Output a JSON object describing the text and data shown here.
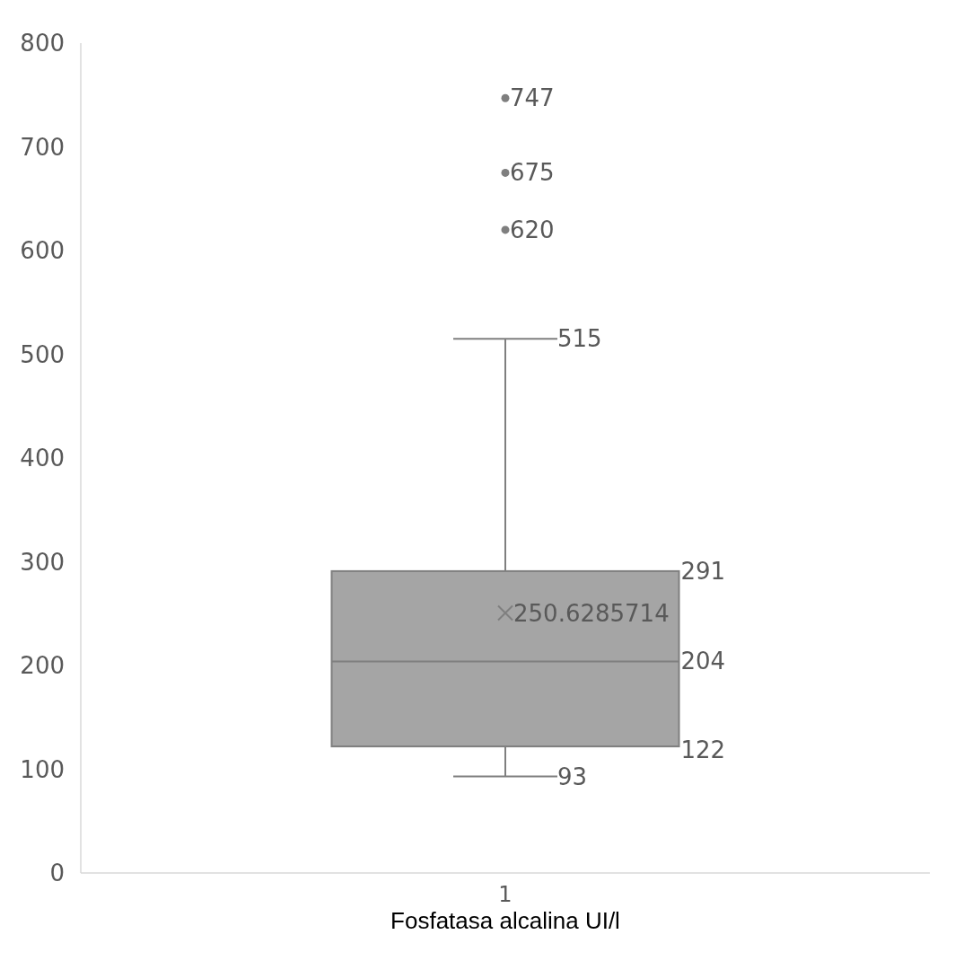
{
  "chart_data": {
    "type": "box",
    "categories": [
      "1"
    ],
    "xlabel": "Fosfatasa alcalina UI/l",
    "ylim": [
      0,
      800
    ],
    "yticks": [
      0,
      100,
      200,
      300,
      400,
      500,
      600,
      700,
      800
    ],
    "grid": false,
    "data_labels": true,
    "series": [
      {
        "color": "#a5a5a5",
        "boxes": [
          {
            "low": 93,
            "q1": 122,
            "median": 204,
            "q3": 291,
            "high": 515
          }
        ]
      },
      {
        "type": "scatter",
        "color": "#7f7f7f",
        "marker": "circle",
        "x": [
          "1",
          "1",
          "1"
        ],
        "values": [
          747,
          675,
          620
        ]
      },
      {
        "type": "scatter",
        "color": "#7f7f7f",
        "marker": "cross",
        "x": [
          "1"
        ],
        "values": [
          250.6285714
        ]
      }
    ],
    "annotations": [
      {
        "text": "515",
        "x": "1",
        "y": 515
      },
      {
        "text": "93",
        "x": "1",
        "y": 93
      },
      "291",
      "204",
      "122"
    ]
  }
}
